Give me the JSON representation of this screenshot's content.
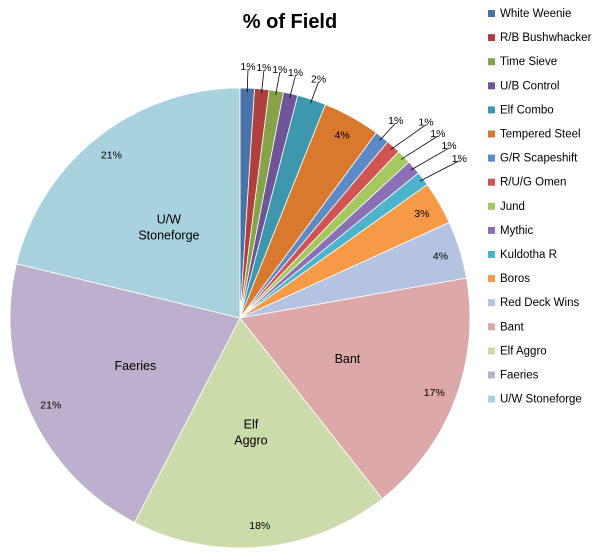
{
  "chart_data": {
    "type": "pie",
    "title": "% of Field",
    "legend_position": "right",
    "slices": [
      {
        "name": "White Weenie",
        "value": 1,
        "label": "1%",
        "color": "#4A73A8"
      },
      {
        "name": "R/B Bushwhacker",
        "value": 1,
        "label": "1%",
        "color": "#B0403D"
      },
      {
        "name": "Time Sieve",
        "value": 1,
        "label": "1%",
        "color": "#86A34A"
      },
      {
        "name": "U/B Control",
        "value": 1,
        "label": "1%",
        "color": "#6E5597"
      },
      {
        "name": "Elf Combo",
        "value": 2,
        "label": "2%",
        "color": "#3D97AD"
      },
      {
        "name": "Tempered Steel",
        "value": 4,
        "label": "4%",
        "color": "#D9792E"
      },
      {
        "name": "G/R Scapeshift",
        "value": 1,
        "label": "1%",
        "color": "#5B8AC6"
      },
      {
        "name": "R/U/G Omen",
        "value": 1,
        "label": "1%",
        "color": "#D05451"
      },
      {
        "name": "Jund",
        "value": 1,
        "label": "1%",
        "color": "#A5C760"
      },
      {
        "name": "Mythic",
        "value": 1,
        "label": "1%",
        "color": "#8A70B5"
      },
      {
        "name": "Kuldotha R",
        "value": 1,
        "label": "1%",
        "color": "#4BB3CC"
      },
      {
        "name": "Boros",
        "value": 3,
        "label": "3%",
        "color": "#F79A45"
      },
      {
        "name": "Red Deck Wins",
        "value": 4,
        "label": "4%",
        "color": "#B3C3E0"
      },
      {
        "name": "Bant",
        "value": 17,
        "label": "17%",
        "color": "#DDA8A8",
        "inner_label": "Bant"
      },
      {
        "name": "Elf Aggro",
        "value": 18,
        "label": "18%",
        "color": "#CCDBAA",
        "inner_label": "Elf Aggro"
      },
      {
        "name": "Faeries",
        "value": 21,
        "label": "21%",
        "color": "#BDB0CC",
        "inner_label": "Faeries"
      },
      {
        "name": "U/W Stoneforge",
        "value": 21,
        "label": "21%",
        "color": "#A9D2DF",
        "inner_label": "U/W Stoneforge"
      }
    ]
  }
}
